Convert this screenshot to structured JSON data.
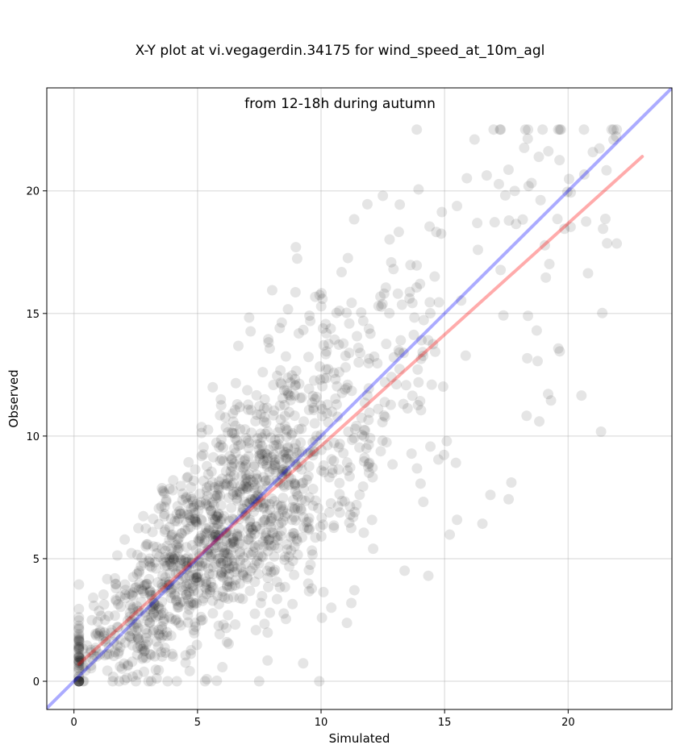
{
  "chart_data": {
    "type": "scatter",
    "title_line1": "X-Y plot at vi.vegagerdin.34175 for wind_speed_at_10m_agl",
    "title_line2": "from 12-18h during autumn",
    "xlabel": "Simulated",
    "ylabel": "Observed",
    "xlim": [
      -1.1,
      24.2
    ],
    "ylim": [
      -1.15,
      24.2
    ],
    "xticks": [
      0,
      5,
      10,
      15,
      20
    ],
    "yticks": [
      0,
      5,
      10,
      15,
      20
    ],
    "grid": true,
    "colors": {
      "points": "#000000",
      "identity_line": "#0000ff",
      "fit_line": "#ff0000"
    },
    "identity_line": {
      "x": [
        -1.1,
        24.2
      ],
      "y": [
        -1.1,
        24.2
      ]
    },
    "fit_line": {
      "x": [
        0.2,
        23.0
      ],
      "y": [
        0.7,
        21.4
      ]
    },
    "points_count": 1500
  }
}
